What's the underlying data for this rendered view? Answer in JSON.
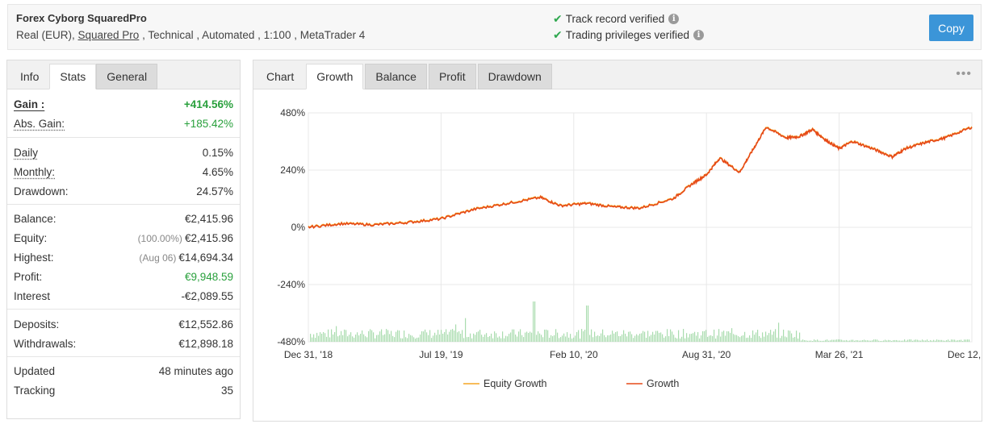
{
  "header": {
    "system_name": "Forex Cyborg SquaredPro",
    "meta_prefix": "Real (EUR), ",
    "meta_link": "Squared Pro",
    "meta_suffix": " , Technical , Automated , 1:100 , MetaTrader 4",
    "verified_track": "Track record verified",
    "verified_trading": "Trading privileges verified",
    "copy_label": "Copy"
  },
  "left_tabs": [
    "Info",
    "Stats",
    "General"
  ],
  "stats": {
    "gain": {
      "label": "Gain :",
      "value": "+414.56%"
    },
    "abs_gain": {
      "label": "Abs. Gain:",
      "value": "+185.42%"
    },
    "daily": {
      "label": "Daily",
      "value": "0.15%"
    },
    "monthly": {
      "label": "Monthly:",
      "value": "4.65%"
    },
    "drawdown": {
      "label": "Drawdown:",
      "value": "24.57%"
    },
    "balance": {
      "label": "Balance:",
      "value": "€2,415.96"
    },
    "equity": {
      "label": "Equity:",
      "hint": "(100.00%)",
      "value": "€2,415.96"
    },
    "highest": {
      "label": "Highest:",
      "hint": "(Aug 06)",
      "value": "€14,694.34"
    },
    "profit": {
      "label": "Profit:",
      "value": "€9,948.59"
    },
    "interest": {
      "label": "Interest",
      "value": "-€2,089.55"
    },
    "deposits": {
      "label": "Deposits:",
      "value": "€12,552.86"
    },
    "withdrawals": {
      "label": "Withdrawals:",
      "value": "€12,898.18"
    },
    "updated": {
      "label": "Updated",
      "value": "48 minutes ago"
    },
    "tracking": {
      "label": "Tracking",
      "value": "35"
    }
  },
  "chart_tabs": [
    "Chart",
    "Growth",
    "Balance",
    "Profit",
    "Drawdown"
  ],
  "colors": {
    "growth": "#e64a19",
    "equity": "#f5a623",
    "volume": "#a9dcae",
    "accent": "#3b95d8",
    "green": "#29a03c"
  },
  "chart_data": {
    "type": "line",
    "ylim": [
      -480,
      480
    ],
    "y_ticks": [
      "480%",
      "240%",
      "0%",
      "-240%",
      "-480%"
    ],
    "x_ticks": [
      "Dec 31, '18",
      "Jul 19, '19",
      "Feb 10, '20",
      "Aug 31, '20",
      "Mar 26, '21",
      "Dec 12, '21"
    ],
    "series": [
      {
        "name": "Growth",
        "x": [
          0,
          0.05,
          0.1,
          0.15,
          0.2,
          0.25,
          0.3,
          0.35,
          0.38,
          0.42,
          0.46,
          0.5,
          0.55,
          0.58,
          0.6,
          0.62,
          0.65,
          0.67,
          0.69,
          0.72,
          0.74,
          0.76,
          0.78,
          0.8,
          0.82,
          0.85,
          0.88,
          0.9,
          0.93,
          0.96,
          1.0
        ],
        "values": [
          0,
          15,
          10,
          20,
          35,
          75,
          100,
          125,
          90,
          100,
          85,
          80,
          120,
          185,
          220,
          290,
          230,
          325,
          420,
          375,
          380,
          410,
          365,
          330,
          360,
          330,
          295,
          330,
          355,
          375,
          420
        ]
      },
      {
        "name": "Equity Growth",
        "x": [],
        "values": []
      }
    ]
  }
}
